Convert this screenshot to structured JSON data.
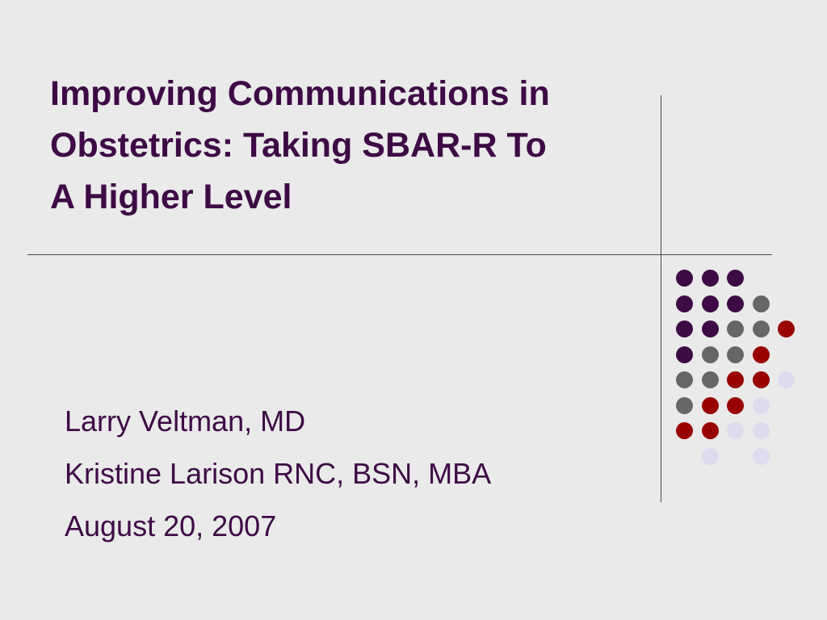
{
  "slide": {
    "title_lines": [
      "Improving Communications in",
      "Obstetrics: Taking SBAR-R To",
      "A Higher Level"
    ],
    "subtitle_lines": [
      "Larry Veltman, MD",
      "Kristine Larison RNC, BSN, MBA",
      "August 20, 2007"
    ]
  },
  "colors": {
    "background": "#EAEAEA",
    "text": "#3D0A45",
    "rule": "#4A4A4A",
    "dot_purple": "#3D0A45",
    "dot_gray": "#666666",
    "dot_red": "#990000",
    "dot_lavender": "#DCDCEE"
  },
  "dot_pattern": [
    [
      "purple",
      "purple",
      "purple",
      "",
      ""
    ],
    [
      "purple",
      "purple",
      "purple",
      "gray",
      ""
    ],
    [
      "purple",
      "purple",
      "gray",
      "gray",
      "red"
    ],
    [
      "purple",
      "gray",
      "gray",
      "red",
      ""
    ],
    [
      "gray",
      "gray",
      "red",
      "red",
      "lavender"
    ],
    [
      "gray",
      "red",
      "red",
      "lavender",
      ""
    ],
    [
      "red",
      "red",
      "lavender",
      "lavender",
      ""
    ],
    [
      "",
      "lavender",
      "",
      "lavender",
      ""
    ]
  ]
}
